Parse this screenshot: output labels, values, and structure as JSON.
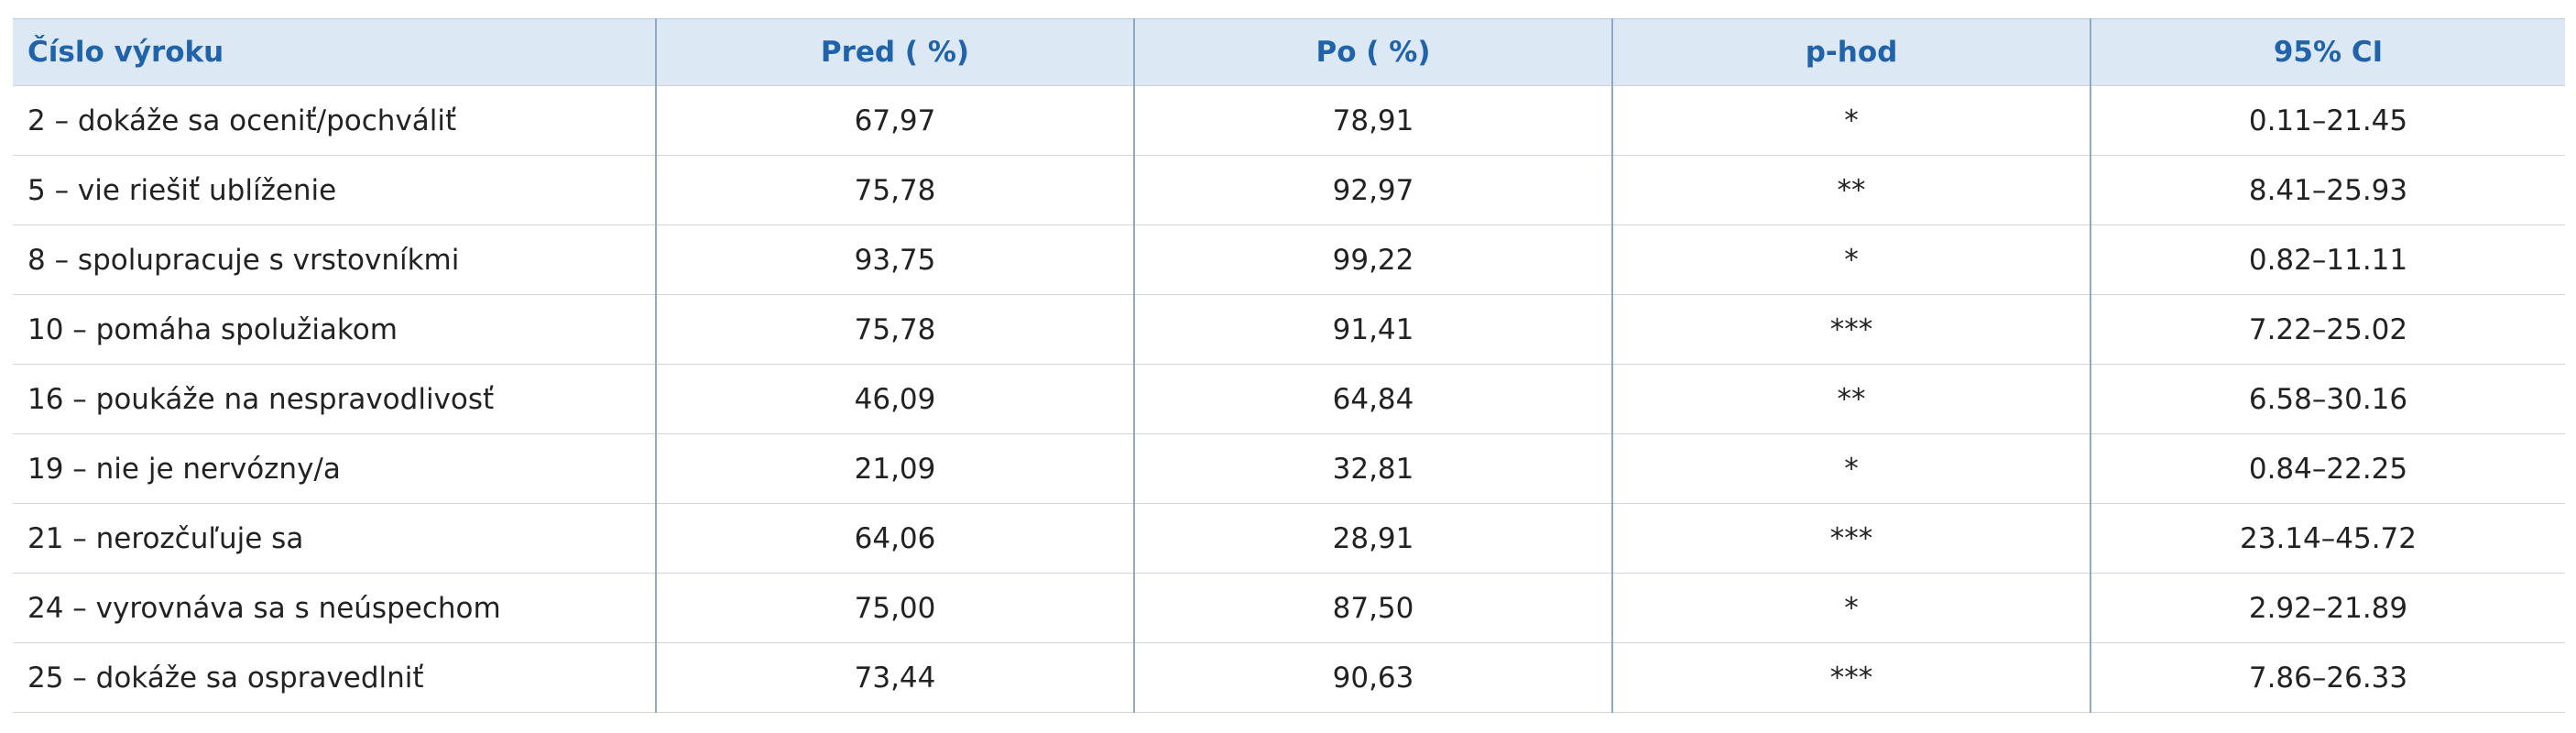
{
  "table": {
    "header": [
      "Číslo výroku",
      "Pred ( %)",
      "Po ( %)",
      "p-hod",
      "95% CI"
    ],
    "rows": [
      [
        "2 – dokáže sa oceniť/pochváliť",
        "67,97",
        "78,91",
        "*",
        "0.11–21.45"
      ],
      [
        "5 – vie riešiť ublíženie",
        "75,78",
        "92,97",
        "**",
        "8.41–25.93"
      ],
      [
        "8 – spolupracuje s vrstovníkmi",
        "93,75",
        "99,22",
        "*",
        "0.82–11.11"
      ],
      [
        "10 – pomáha spolužiakom",
        "75,78",
        "91,41",
        "***",
        "7.22–25.02"
      ],
      [
        "16 – poukáže na nespravodlivosť",
        "46,09",
        "64,84",
        "**",
        "6.58–30.16"
      ],
      [
        "19 – nie je nervózny/a",
        "21,09",
        "32,81",
        "*",
        "0.84–22.25"
      ],
      [
        "21 – nerozčuľuje sa",
        "64,06",
        "28,91",
        "***",
        "23.14–45.72"
      ],
      [
        "24 – vyrovnáva sa s neúspechom",
        "75,00",
        "87,50",
        "*",
        "2.92–21.89"
      ],
      [
        "25 – dokáže sa ospravedlniť",
        "73,44",
        "90,63",
        "***",
        "7.86–26.33"
      ]
    ]
  }
}
